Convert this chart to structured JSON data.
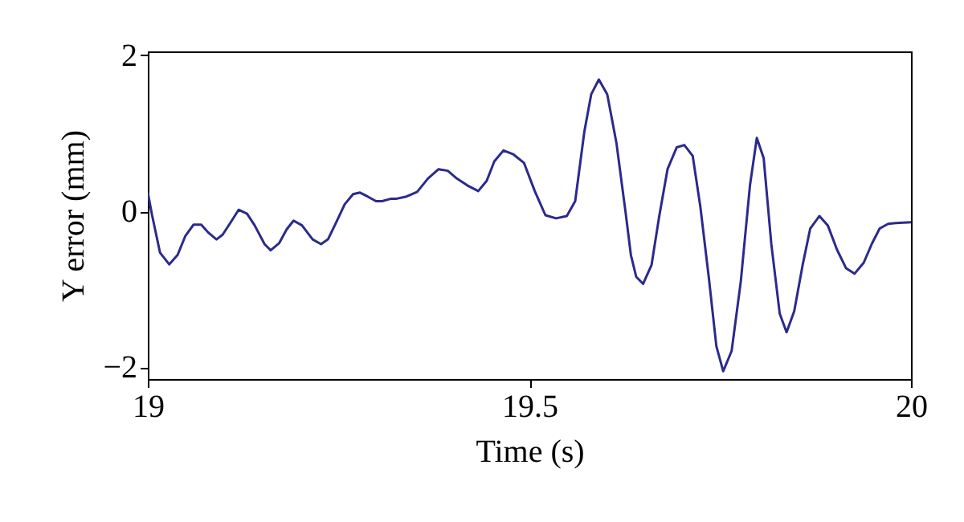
{
  "chart_data": {
    "type": "line",
    "xlabel": "Time (s)",
    "ylabel": "Y error (mm)",
    "xlim": [
      19,
      20
    ],
    "xticks": [
      19,
      19.5,
      20
    ],
    "ylim": [
      -2.15,
      2.05
    ],
    "yticks": [
      -2,
      0,
      2
    ],
    "grid": false,
    "line_style": "solid",
    "series": [
      {
        "color": "#2b2a8c",
        "x": [
          19.0,
          19.0056,
          19.016,
          19.028,
          19.039,
          19.049,
          19.06,
          19.07,
          19.079,
          19.09,
          19.098,
          19.108,
          19.119,
          19.13,
          19.14,
          19.153,
          19.161,
          19.172,
          19.182,
          19.191,
          19.202,
          19.216,
          19.227,
          19.236,
          19.246,
          19.258,
          19.269,
          19.278,
          19.288,
          19.299,
          19.307,
          19.318,
          19.325,
          19.339,
          19.353,
          19.367,
          19.381,
          19.393,
          19.405,
          19.419,
          19.433,
          19.444,
          19.454,
          19.466,
          19.479,
          19.493,
          19.507,
          19.521,
          19.535,
          19.549,
          19.56,
          19.572,
          19.581,
          19.591,
          19.602,
          19.614,
          19.626,
          19.633,
          19.64,
          19.649,
          19.66,
          19.67,
          19.681,
          19.693,
          19.703,
          19.714,
          19.724,
          19.735,
          19.745,
          19.754,
          19.765,
          19.777,
          19.789,
          19.798,
          19.807,
          19.817,
          19.828,
          19.837,
          19.847,
          19.858,
          19.868,
          19.88,
          19.891,
          19.903,
          19.915,
          19.926,
          19.938,
          19.949,
          19.959,
          19.97,
          19.98,
          20.0
        ],
        "values": [
          0.24,
          -0.05,
          -0.53,
          -0.68,
          -0.56,
          -0.32,
          -0.17,
          -0.17,
          -0.27,
          -0.36,
          -0.3,
          -0.15,
          0.02,
          -0.03,
          -0.18,
          -0.42,
          -0.5,
          -0.41,
          -0.23,
          -0.12,
          -0.18,
          -0.36,
          -0.42,
          -0.36,
          -0.16,
          0.09,
          0.22,
          0.24,
          0.19,
          0.13,
          0.13,
          0.16,
          0.16,
          0.19,
          0.25,
          0.42,
          0.54,
          0.52,
          0.42,
          0.33,
          0.26,
          0.39,
          0.64,
          0.78,
          0.73,
          0.62,
          0.26,
          -0.05,
          -0.09,
          -0.06,
          0.13,
          1.02,
          1.5,
          1.69,
          1.5,
          0.88,
          -0.01,
          -0.56,
          -0.84,
          -0.93,
          -0.69,
          -0.07,
          0.54,
          0.82,
          0.85,
          0.71,
          0.06,
          -0.84,
          -1.73,
          -2.05,
          -1.79,
          -0.9,
          0.33,
          0.94,
          0.68,
          -0.42,
          -1.31,
          -1.55,
          -1.28,
          -0.69,
          -0.22,
          -0.06,
          -0.18,
          -0.49,
          -0.73,
          -0.8,
          -0.66,
          -0.41,
          -0.22,
          -0.16,
          -0.15,
          -0.14
        ]
      }
    ]
  }
}
